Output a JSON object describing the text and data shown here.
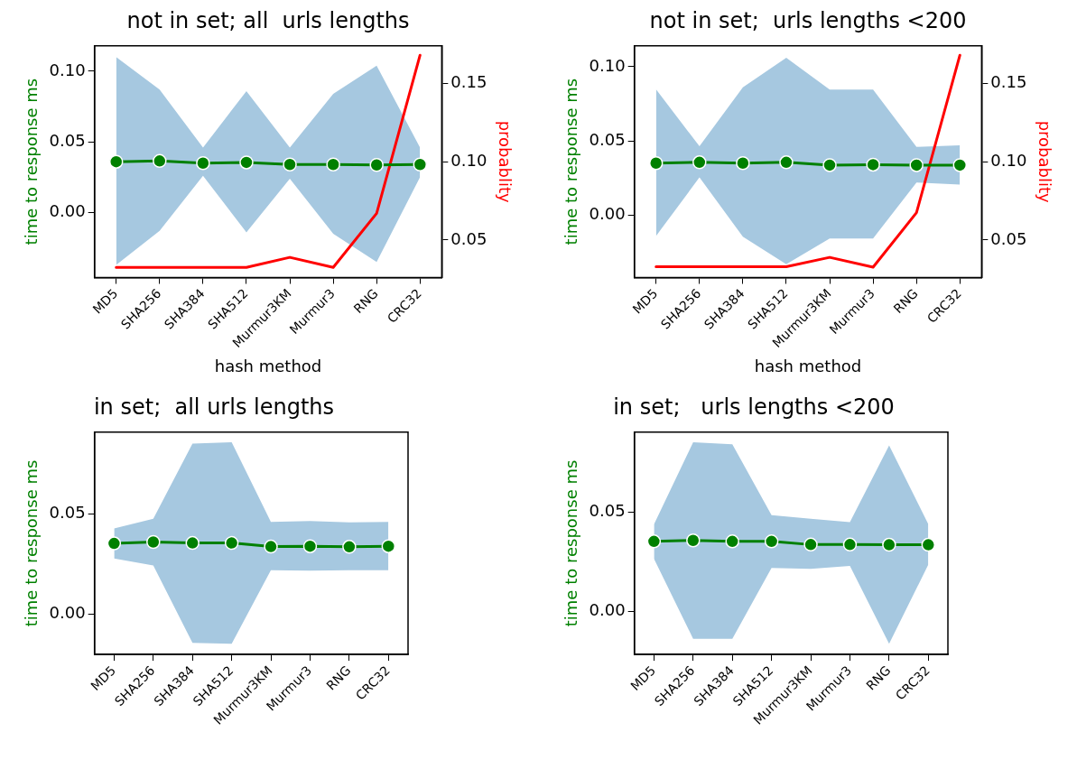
{
  "chart_data": [
    {
      "type": "line",
      "title": "not in set; all  urls lengths",
      "xlabel": "hash method",
      "ylabel": "time to response ms",
      "y2label": "probablity",
      "marker": "circle",
      "categories": [
        "MD5",
        "SHA256",
        "SHA384",
        "SHA512",
        "Murmur3KM",
        "Murmur3",
        "RNG",
        "CRC32"
      ],
      "ylim": [
        -0.046,
        0.118
      ],
      "yticks": [
        {
          "value": 0,
          "label": "0.00"
        },
        {
          "value": 0.05,
          "label": "0.05"
        },
        {
          "value": 0.1,
          "label": "0.10"
        }
      ],
      "y2lim": [
        0.026,
        0.174
      ],
      "y2ticks": [
        {
          "value": 0.05,
          "label": "0.05"
        },
        {
          "value": 0.1,
          "label": "0.10"
        },
        {
          "value": 0.15,
          "label": "0.15"
        }
      ],
      "series": [
        {
          "color": "#008000",
          "values": [
            0.036,
            0.0365,
            0.035,
            0.0355,
            0.034,
            0.034,
            0.0337,
            0.034
          ],
          "lower": [
            -0.037,
            -0.013,
            0.026,
            -0.014,
            0.024,
            -0.015,
            -0.035,
            0.025
          ],
          "upper": [
            0.11,
            0.087,
            0.046,
            0.086,
            0.046,
            0.084,
            0.104,
            0.046
          ]
        },
        {
          "color": "#ff0000",
          "axis": "y2",
          "marker": "none",
          "values": [
            0.0325,
            0.0325,
            0.0325,
            0.0325,
            0.0389,
            0.0325,
            0.067,
            0.168
          ]
        }
      ]
    },
    {
      "type": "line",
      "title": "not in set;  urls lengths <200",
      "xlabel": "hash method",
      "ylabel": "time to response ms",
      "y2label": "probablity",
      "marker": "circle",
      "categories": [
        "MD5",
        "SHA256",
        "SHA384",
        "SHA512",
        "Murmur3KM",
        "Murmur3",
        "RNG",
        "CRC32"
      ],
      "ylim": [
        -0.042,
        0.114
      ],
      "yticks": [
        {
          "value": 0,
          "label": "0.00"
        },
        {
          "value": 0.05,
          "label": "0.05"
        },
        {
          "value": 0.1,
          "label": "0.10"
        }
      ],
      "y2lim": [
        0.026,
        0.174
      ],
      "y2ticks": [
        {
          "value": 0.05,
          "label": "0.05"
        },
        {
          "value": 0.1,
          "label": "0.10"
        },
        {
          "value": 0.15,
          "label": "0.15"
        }
      ],
      "series": [
        {
          "color": "#008000",
          "values": [
            0.035,
            0.0356,
            0.035,
            0.0356,
            0.0337,
            0.034,
            0.0337,
            0.0337
          ],
          "lower": [
            -0.014,
            0.0254,
            -0.0145,
            -0.033,
            -0.0157,
            -0.0157,
            0.022,
            0.0206
          ],
          "upper": [
            0.0847,
            0.0464,
            0.086,
            0.106,
            0.0845,
            0.0845,
            0.046,
            0.047
          ]
        },
        {
          "color": "#ff0000",
          "axis": "y2",
          "marker": "none",
          "values": [
            0.0329,
            0.0329,
            0.0329,
            0.0329,
            0.0389,
            0.0326,
            0.0674,
            0.168
          ]
        }
      ]
    },
    {
      "type": "line",
      "title": "in set;  all urls lengths",
      "ylabel": "time to response ms",
      "marker": "circle",
      "categories": [
        "MD5",
        "SHA256",
        "SHA384",
        "SHA512",
        "Murmur3KM",
        "Murmur3",
        "RNG",
        "CRC32"
      ],
      "ylim": [
        -0.02,
        0.0907
      ],
      "yticks": [
        {
          "value": 0,
          "label": "0.00"
        },
        {
          "value": 0.05,
          "label": "0.05"
        }
      ],
      "series": [
        {
          "color": "#008000",
          "values": [
            0.0353,
            0.036,
            0.0355,
            0.0355,
            0.0337,
            0.0339,
            0.0336,
            0.0339
          ],
          "lower": [
            0.0278,
            0.0243,
            -0.0142,
            -0.0147,
            0.022,
            0.0217,
            0.022,
            0.022
          ],
          "upper": [
            0.0427,
            0.0476,
            0.085,
            0.0857,
            0.046,
            0.0465,
            0.0458,
            0.046
          ]
        }
      ]
    },
    {
      "type": "line",
      "title": "in set;   urls lengths <200",
      "ylabel": "time to response ms",
      "marker": "circle",
      "categories": [
        "MD5",
        "SHA256",
        "SHA384",
        "SHA512",
        "Murmur3KM",
        "Murmur3",
        "RNG",
        "CRC32"
      ],
      "ylim": [
        -0.0217,
        0.0904
      ],
      "yticks": [
        {
          "value": 0,
          "label": "0.00"
        },
        {
          "value": 0.05,
          "label": "0.05"
        }
      ],
      "series": [
        {
          "color": "#008000",
          "values": [
            0.0353,
            0.0358,
            0.0353,
            0.0353,
            0.0337,
            0.0337,
            0.0336,
            0.0336
          ],
          "lower": [
            0.0266,
            -0.0138,
            -0.0138,
            0.0219,
            0.0215,
            0.0229,
            -0.0163,
            0.0236
          ],
          "upper": [
            0.0439,
            0.0853,
            0.0843,
            0.0486,
            0.0467,
            0.045,
            0.0837,
            0.044
          ]
        }
      ]
    }
  ]
}
